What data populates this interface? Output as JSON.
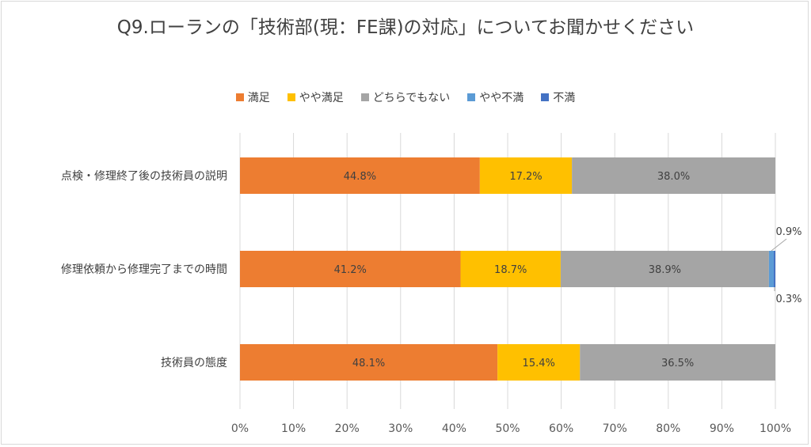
{
  "chart_data": {
    "type": "bar",
    "orientation": "horizontal",
    "stacked": "percent",
    "title": "Q9.ローランの「技術部(現：FE課)の対応」についてお聞かせください",
    "categories": [
      "点検・修理終了後の技術員の説明",
      "修理依頼から修理完了までの時間",
      "技術員の態度"
    ],
    "series": [
      {
        "name": "満足",
        "color": "#ed7d31",
        "values": [
          44.8,
          41.2,
          48.1
        ]
      },
      {
        "name": "やや満足",
        "color": "#ffc000",
        "values": [
          17.2,
          18.7,
          15.4
        ]
      },
      {
        "name": "どちらでもない",
        "color": "#a5a5a5",
        "values": [
          38.0,
          38.9,
          36.5
        ]
      },
      {
        "name": "やや不満",
        "color": "#5b9bd5",
        "values": [
          0,
          0.9,
          0
        ]
      },
      {
        "name": "不満",
        "color": "#4472c4",
        "values": [
          0,
          0.3,
          0
        ]
      }
    ],
    "x_ticks": [
      "0%",
      "10%",
      "20%",
      "30%",
      "40%",
      "50%",
      "60%",
      "70%",
      "80%",
      "90%",
      "100%"
    ],
    "xlim": [
      0,
      100
    ],
    "grid": true,
    "legend": "top",
    "inside_labels": [
      [
        "44.8%",
        "17.2%",
        "38.0%"
      ],
      [
        "41.2%",
        "18.7%",
        "38.9%"
      ],
      [
        "48.1%",
        "15.4%",
        "36.5%"
      ]
    ],
    "callout_labels": [
      {
        "category_index": 1,
        "series_index": 3,
        "text": "0.9%",
        "position": "above"
      },
      {
        "category_index": 1,
        "series_index": 4,
        "text": "0.3%",
        "position": "below"
      }
    ]
  }
}
